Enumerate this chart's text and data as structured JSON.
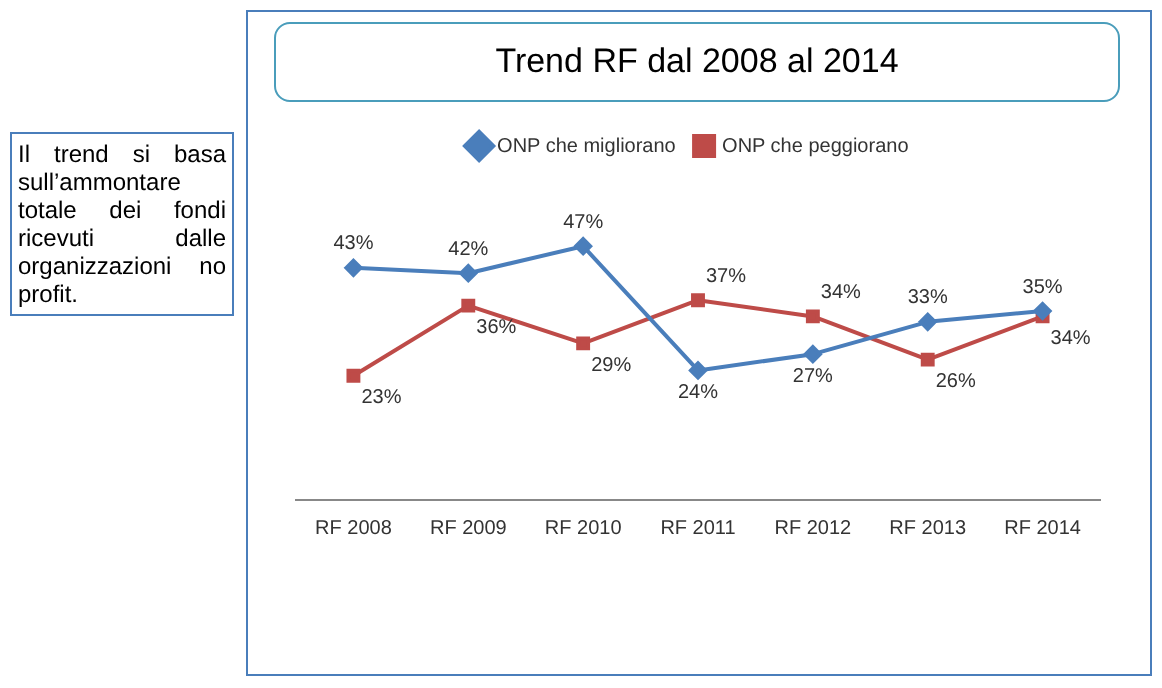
{
  "chart_data": {
    "type": "line",
    "title": "Trend RF dal 2008 al 2014",
    "categories": [
      "RF 2008",
      "RF 2009",
      "RF 2010",
      "RF 2011",
      "RF 2012",
      "RF 2013",
      "RF 2014"
    ],
    "series": [
      {
        "name": "ONP che migliorano",
        "color": "#4a7ebb",
        "marker": "diamond",
        "values": [
          43,
          42,
          47,
          24,
          27,
          33,
          35
        ],
        "value_labels": [
          "43%",
          "42%",
          "47%",
          "24%",
          "27%",
          "33%",
          "35%"
        ]
      },
      {
        "name": "ONP che peggiorano",
        "color": "#be4b48",
        "marker": "square",
        "values": [
          23,
          36,
          29,
          37,
          34,
          26,
          34
        ],
        "value_labels": [
          "23%",
          "36%",
          "29%",
          "37%",
          "34%",
          "26%",
          "34%"
        ]
      }
    ],
    "tick_labels": "x",
    "grid": false,
    "legend": "top",
    "annotations": [
      "Il trend si basa sull’ammontare totale dei fondi ricevuti dalle organizzazioni no profit."
    ]
  }
}
